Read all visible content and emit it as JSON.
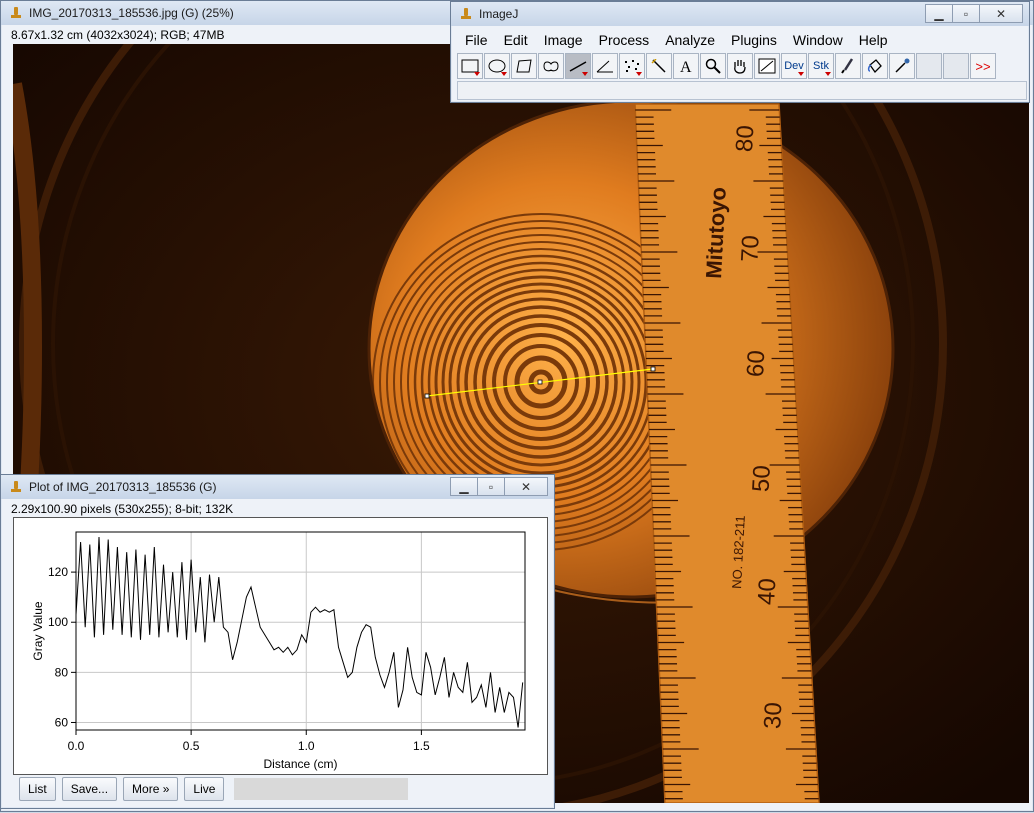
{
  "image_window": {
    "title": "IMG_20170313_185536.jpg (G) (25%)",
    "info": "8.67x1.32 cm (4032x3024); RGB; 47MB",
    "ruler": {
      "brand": "Mitutoyo",
      "part": "NO. 182-211",
      "scale": [
        "80",
        "70",
        "60",
        "50",
        "40",
        "30"
      ]
    }
  },
  "imagej_window": {
    "title": "ImageJ",
    "menu": [
      "File",
      "Edit",
      "Image",
      "Process",
      "Analyze",
      "Plugins",
      "Window",
      "Help"
    ],
    "tools": {
      "dev": "Dev",
      "stk": "Stk",
      "more": ">>"
    }
  },
  "plot_window": {
    "title": "Plot of IMG_20170313_185536 (G)",
    "info": "2.29x100.90 pixels (530x255); 8-bit; 132K",
    "buttons": {
      "list": "List",
      "save": "Save...",
      "more": "More »",
      "live": "Live"
    }
  },
  "chart_data": {
    "type": "line",
    "xlabel": "Distance (cm)",
    "ylabel": "Gray Value",
    "xlim": [
      0,
      1.95
    ],
    "ylim": [
      57,
      136
    ],
    "xticks": [
      "0.0",
      "0.5",
      "1.0",
      "1.5"
    ],
    "xtick_values": [
      0,
      0.5,
      1.0,
      1.5
    ],
    "yticks": [
      "60",
      "80",
      "100",
      "120"
    ],
    "ytick_values": [
      60,
      80,
      100,
      120
    ],
    "grid": true,
    "x": [
      0.0,
      0.02,
      0.04,
      0.06,
      0.08,
      0.1,
      0.12,
      0.14,
      0.16,
      0.18,
      0.2,
      0.22,
      0.24,
      0.26,
      0.28,
      0.3,
      0.32,
      0.34,
      0.36,
      0.38,
      0.4,
      0.42,
      0.44,
      0.46,
      0.48,
      0.5,
      0.52,
      0.54,
      0.56,
      0.58,
      0.6,
      0.62,
      0.64,
      0.66,
      0.68,
      0.7,
      0.72,
      0.74,
      0.76,
      0.78,
      0.8,
      0.82,
      0.84,
      0.86,
      0.88,
      0.9,
      0.92,
      0.94,
      0.96,
      0.98,
      1.0,
      1.02,
      1.04,
      1.06,
      1.08,
      1.1,
      1.12,
      1.14,
      1.16,
      1.18,
      1.2,
      1.22,
      1.24,
      1.26,
      1.28,
      1.3,
      1.32,
      1.34,
      1.36,
      1.38,
      1.4,
      1.42,
      1.44,
      1.46,
      1.48,
      1.5,
      1.52,
      1.54,
      1.56,
      1.58,
      1.6,
      1.62,
      1.64,
      1.66,
      1.68,
      1.7,
      1.72,
      1.74,
      1.76,
      1.78,
      1.8,
      1.82,
      1.84,
      1.86,
      1.88,
      1.9,
      1.92,
      1.94
    ],
    "values": [
      103,
      132,
      98,
      131,
      94,
      134,
      95,
      133,
      97,
      130,
      95,
      128,
      94,
      129,
      93,
      127,
      95,
      130,
      94,
      123,
      96,
      120,
      94,
      124,
      93,
      125,
      96,
      118,
      92,
      119,
      100,
      118,
      98,
      96,
      85,
      92,
      101,
      110,
      114,
      106,
      98,
      95,
      92,
      89,
      90,
      88,
      90,
      87,
      89,
      95,
      92,
      104,
      106,
      104,
      105,
      104,
      105,
      90,
      84,
      78,
      80,
      90,
      96,
      99,
      98,
      86,
      79,
      74,
      80,
      88,
      66,
      73,
      90,
      78,
      72,
      71,
      88,
      82,
      71,
      78,
      86,
      70,
      80,
      74,
      72,
      84,
      68,
      70,
      75,
      66,
      80,
      64,
      74,
      64,
      72,
      70,
      58,
      76
    ]
  }
}
